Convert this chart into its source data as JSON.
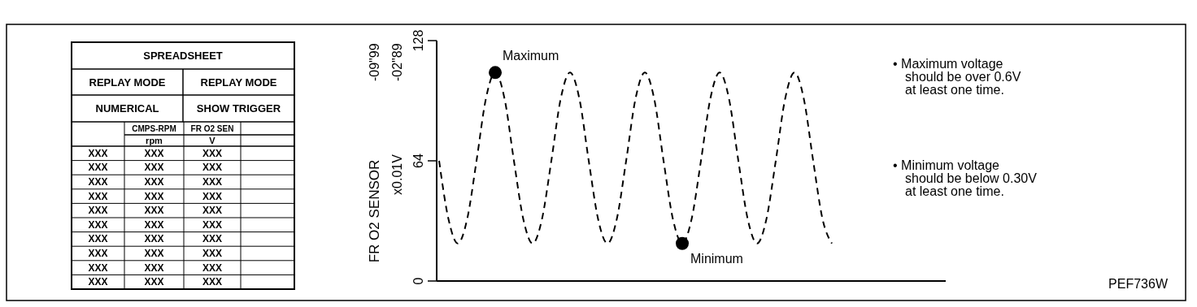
{
  "chart_data": [
    {
      "type": "other",
      "title": "SPREADSHEET",
      "annotations": [
        "REPLAY MODE",
        "REPLAY MODE",
        "NUMERICAL",
        "SHOW TRIGGER",
        "CMPS-RPM",
        "FR O2 SEN",
        "rpm",
        "V",
        "XXX",
        "XXX",
        "XXX",
        "XXX",
        "XXX",
        "XXX",
        "XXX",
        "XXX",
        "XXX",
        "XXX",
        "XXX",
        "XXX",
        "XXX",
        "XXX",
        "XXX",
        "XXX",
        "XXX",
        "XXX",
        "XXX",
        "XXX",
        "XXX",
        "XXX",
        "XXX",
        "XXX",
        "XXX",
        "XXX",
        "XXX",
        "XXX",
        "XXX",
        "XXX"
      ]
    },
    {
      "type": "line",
      "ylabel": "FR O2 SENSOR\nx0.01V",
      "ylim": [
        0,
        128
      ],
      "yticks": [
        0,
        64,
        128
      ],
      "line_style": "dashed",
      "categories": [
        null,
        null,
        null,
        null,
        null,
        null,
        null,
        null,
        null,
        null,
        null,
        null,
        null,
        null,
        null,
        null,
        null,
        null,
        null,
        null,
        null,
        null,
        null,
        null,
        null,
        null,
        null,
        null,
        null,
        null,
        null,
        null,
        null,
        null,
        null,
        null,
        null,
        null,
        null,
        null,
        null,
        null,
        null
      ],
      "series": [
        {
          "type": "line",
          "color": "#000000",
          "values": [
            64,
            33,
            20,
            33,
            64,
            97,
            111,
            97,
            64,
            33,
            20,
            33,
            64,
            97,
            111,
            97,
            64,
            33,
            20,
            33,
            64,
            97,
            111,
            97,
            64,
            33,
            20,
            33,
            64,
            97,
            111,
            97,
            64,
            33,
            20,
            33,
            64,
            97,
            111,
            97,
            64,
            33,
            20
          ]
        },
        {
          "type": "scatter",
          "color": "#000000",
          "marker": "circle",
          "values": [
            null,
            null,
            null,
            null,
            null,
            null,
            111,
            null,
            null,
            null,
            null,
            null,
            null,
            null,
            null,
            null,
            null,
            null,
            null,
            null,
            null,
            null,
            null,
            null,
            null,
            null,
            20,
            null,
            null,
            null,
            null,
            null,
            null,
            null,
            null,
            null,
            null,
            null,
            null,
            null,
            null,
            null,
            null
          ]
        }
      ],
      "annotations": [
        "-09\"99",
        "-02\"89",
        "Maximum",
        "Minimum",
        "• Maximum voltage\nshould be over 0.6V\nat least one time.",
        "• Minimum voltage\nshould be below 0.30V\nat least one time.",
        "PEF736W"
      ]
    }
  ]
}
